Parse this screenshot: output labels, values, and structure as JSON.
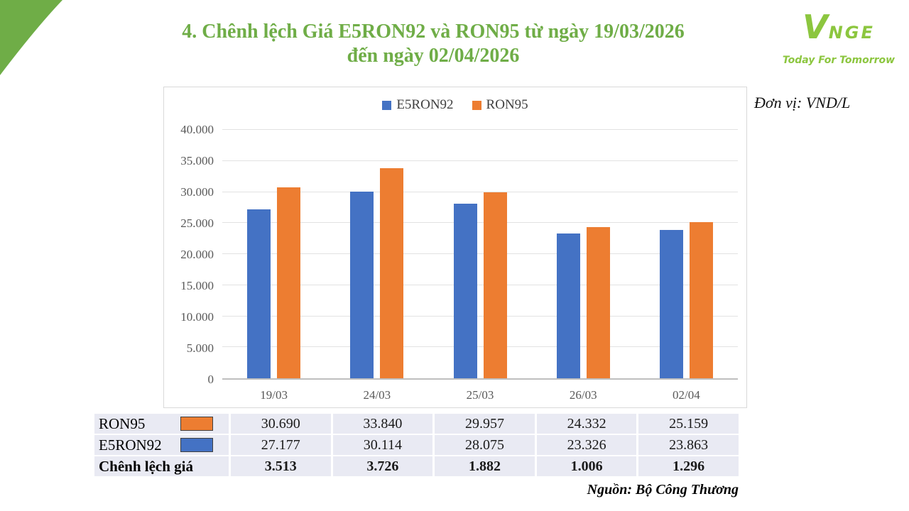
{
  "title": {
    "line1": "4. Chênh lệch Giá E5RON92 và RON95 từ ngày 19/03/2026",
    "line2": "đến ngày 02/04/2026"
  },
  "logo": {
    "brand_v": "V",
    "brand_rest": "NGE",
    "tagline": "Today For Tomorrow"
  },
  "unit_label": "Đơn vị: VND/L",
  "source_label": "Nguồn: Bộ Công Thương",
  "colors": {
    "title_green": "#6FAD47",
    "corner_green": "#6FAD47",
    "logo_green": "#8CC63F",
    "e5ron92_blue": "#4472C4",
    "ron95_orange": "#ED7D31"
  },
  "chart_data": {
    "type": "bar",
    "title": "",
    "categories": [
      "19/03",
      "24/03",
      "25/03",
      "26/03",
      "02/04"
    ],
    "series": [
      {
        "name": "E5RON92",
        "color": "#4472C4",
        "values": [
          27177,
          30114,
          28075,
          23326,
          23863
        ]
      },
      {
        "name": "RON95",
        "color": "#ED7D31",
        "values": [
          30690,
          33840,
          29957,
          24332,
          25159
        ]
      }
    ],
    "xlabel": "",
    "ylabel": "",
    "ylim": [
      0,
      40000
    ],
    "grid": true,
    "legend_position": "top",
    "yticks": [
      {
        "label": "40.000",
        "value": 40000
      },
      {
        "label": "35.000",
        "value": 35000
      },
      {
        "label": "30.000",
        "value": 30000
      },
      {
        "label": "25.000",
        "value": 25000
      },
      {
        "label": "20.000",
        "value": 20000
      },
      {
        "label": "15.000",
        "value": 15000
      },
      {
        "label": "10.000",
        "value": 10000
      },
      {
        "label": "5.000",
        "value": 5000
      },
      {
        "label": "0",
        "value": 0
      }
    ]
  },
  "table": {
    "rows": [
      {
        "label": "RON95",
        "swatch": "#ED7D31",
        "bold": false,
        "values": [
          "30.690",
          "33.840",
          "29.957",
          "24.332",
          "25.159"
        ]
      },
      {
        "label": "E5RON92",
        "swatch": "#4472C4",
        "bold": false,
        "values": [
          "27.177",
          "30.114",
          "28.075",
          "23.326",
          "23.863"
        ]
      },
      {
        "label": "Chênh lệch giá",
        "swatch": null,
        "bold": true,
        "values": [
          "3.513",
          "3.726",
          "1.882",
          "1.006",
          "1.296"
        ]
      }
    ]
  }
}
